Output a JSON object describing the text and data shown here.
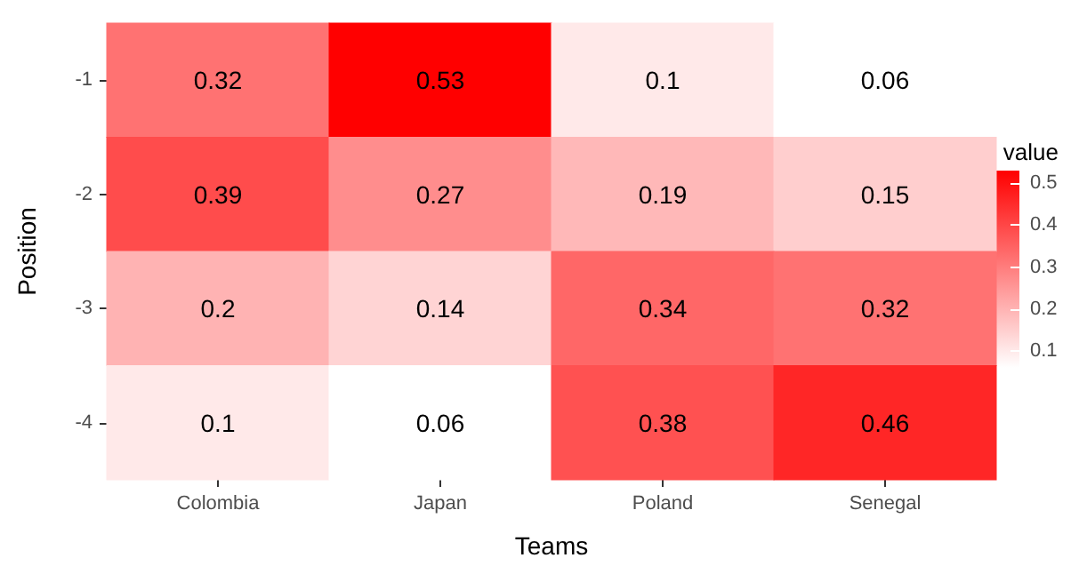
{
  "chart_data": {
    "type": "heatmap",
    "xlabel": "Teams",
    "ylabel": "Position",
    "clabel": "value",
    "categories": [
      "Colombia",
      "Japan",
      "Poland",
      "Senegal"
    ],
    "y_categories": [
      "-1",
      "-2",
      "-3",
      "-4"
    ],
    "cells": [
      [
        0.32,
        0.53,
        0.1,
        0.06
      ],
      [
        0.39,
        0.27,
        0.19,
        0.15
      ],
      [
        0.2,
        0.14,
        0.34,
        0.32
      ],
      [
        0.1,
        0.06,
        0.38,
        0.46
      ]
    ],
    "clim": [
      0.06,
      0.53
    ],
    "cticks": [
      0.1,
      0.2,
      0.3,
      0.4,
      0.5
    ],
    "colors": [
      "#ffffff",
      "#ff0000"
    ],
    "data_labels": true
  }
}
